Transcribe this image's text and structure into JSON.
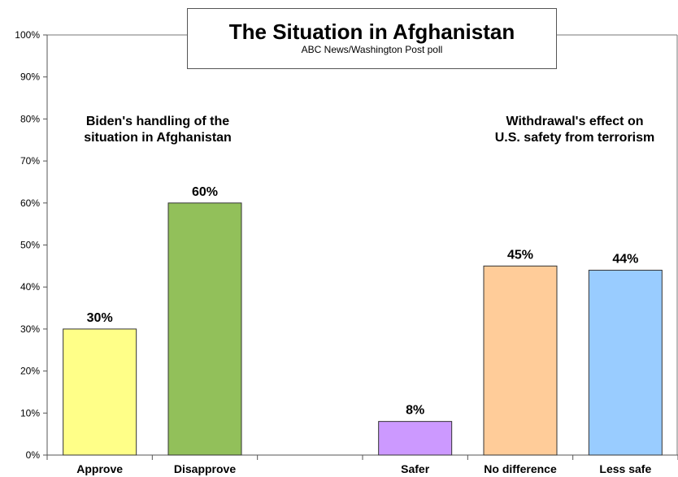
{
  "chart_data": {
    "type": "bar",
    "title": "The Situation in Afghanistan",
    "subtitle": "ABC News/Washington Post poll",
    "ylim": [
      0,
      100
    ],
    "y_ticks": [
      "0%",
      "10%",
      "20%",
      "30%",
      "40%",
      "50%",
      "60%",
      "70%",
      "80%",
      "90%",
      "100%"
    ],
    "grid": false,
    "groups": [
      {
        "label_lines": [
          "Biden's handling of the",
          "situation in Afghanistan"
        ],
        "categories": [
          "Approve",
          "Disapprove"
        ],
        "values": [
          30,
          60
        ],
        "value_labels": [
          "30%",
          "60%"
        ],
        "colors": [
          "#FFFF88",
          "#92C05A"
        ]
      },
      {
        "label_lines": [
          "Withdrawal's effect on",
          "U.S. safety from terrorism"
        ],
        "categories": [
          "Safer",
          "No difference",
          "Less safe"
        ],
        "values": [
          8,
          45,
          44
        ],
        "value_labels": [
          "8%",
          "45%",
          "44%"
        ],
        "colors": [
          "#CC99FF",
          "#FFCC99",
          "#99CCFF"
        ]
      }
    ]
  }
}
